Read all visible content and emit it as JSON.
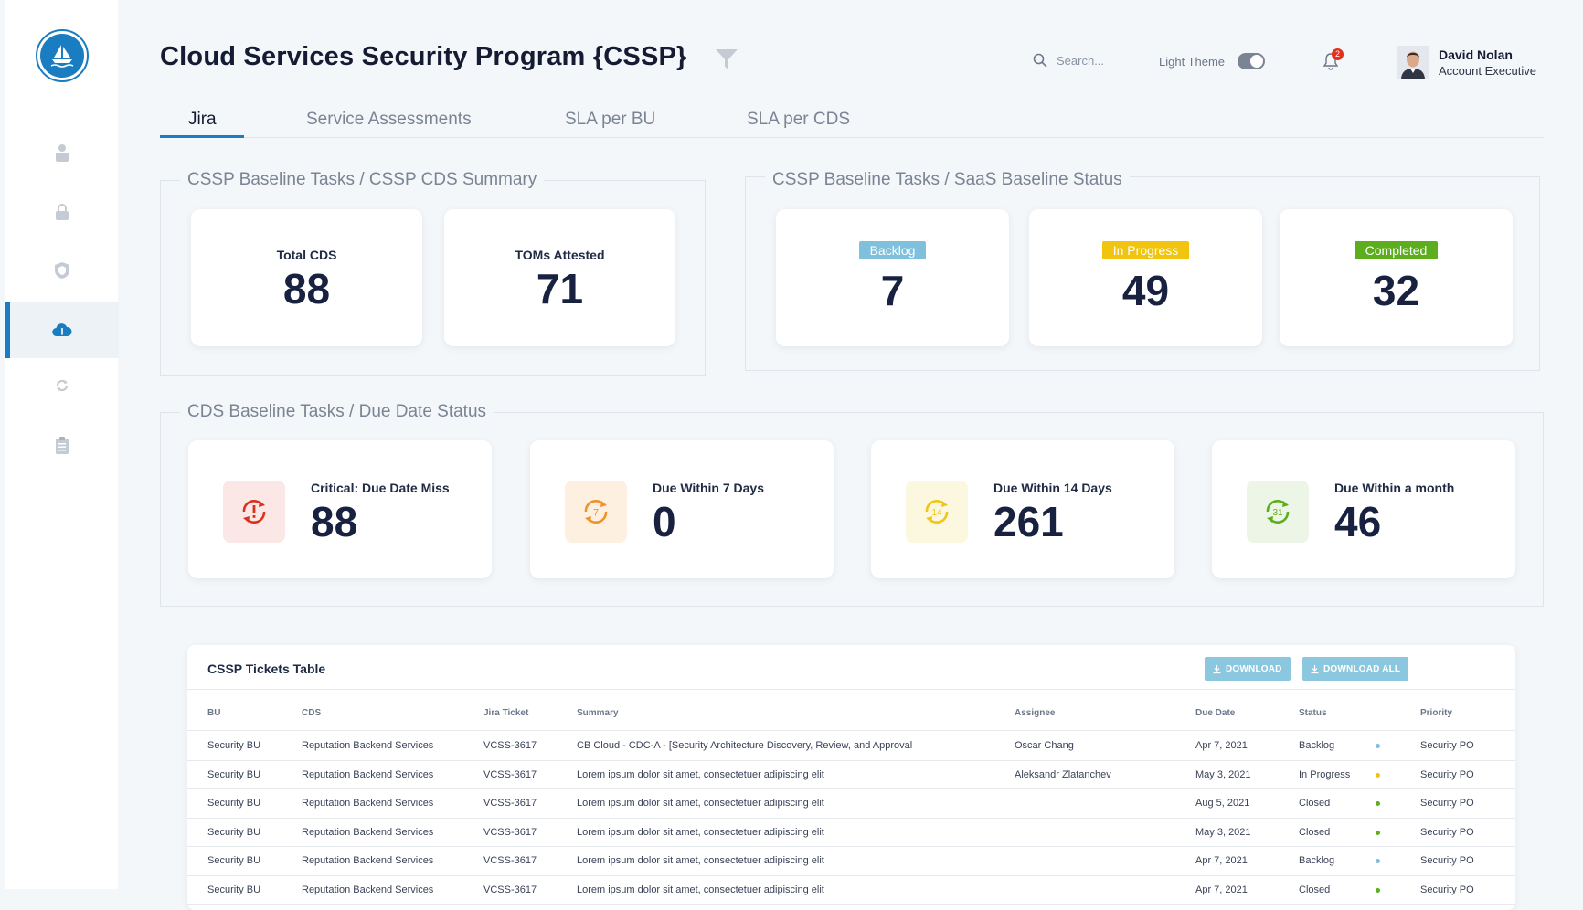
{
  "header": {
    "title": "Cloud Services Security Program {CSSP}",
    "search_placeholder": "Search...",
    "theme_label": "Light Theme",
    "notification_count": "2",
    "user": {
      "name": "David Nolan",
      "role": "Account Executive"
    }
  },
  "sidebar": {
    "items": [
      {
        "icon": "user-icon"
      },
      {
        "icon": "lock-icon"
      },
      {
        "icon": "shield-icon"
      },
      {
        "icon": "cloud-icon",
        "active": true
      },
      {
        "icon": "sync-icon"
      },
      {
        "icon": "clipboard-icon"
      }
    ]
  },
  "tabs": [
    {
      "label": "Jira",
      "active": true
    },
    {
      "label": "Service Assessments"
    },
    {
      "label": "SLA per BU"
    },
    {
      "label": "SLA per CDS"
    }
  ],
  "summary": {
    "legend": "CSSP Baseline Tasks / CSSP CDS Summary",
    "total_cds_label": "Total CDS",
    "total_cds_value": "88",
    "toms_label": "TOMs Attested",
    "toms_value": "71"
  },
  "saas": {
    "legend": "CSSP Baseline Tasks / SaaS Baseline Status",
    "backlog_label": "Backlog",
    "backlog_value": "7",
    "backlog_color": "#7fc1dc",
    "inprogress_label": "In Progress",
    "inprogress_value": "49",
    "inprogress_color": "#f1c40f",
    "completed_label": "Completed",
    "completed_value": "32",
    "completed_color": "#5cae1f"
  },
  "due": {
    "legend": "CDS Baseline Tasks / Due Date Status",
    "critical_label": "Critical: Due Date Miss",
    "critical_value": "88",
    "d7_label": "Due Within 7 Days",
    "d7_value": "0",
    "d14_label": "Due Within 14 Days",
    "d14_value": "261",
    "month_label": "Due Within a month",
    "month_value": "46",
    "d7_icon_text": "7",
    "d14_icon_text": "14",
    "month_icon_text": "31"
  },
  "table": {
    "title": "CSSP Tickets Table",
    "download_label": "DOWNLOAD",
    "download_all_label": "DOWNLOAD ALL",
    "columns": [
      "BU",
      "CDS",
      "Jira Ticket",
      "Summary",
      "Assignee",
      "Due Date",
      "Status",
      "Priority"
    ],
    "rows": [
      {
        "bu": "Security BU",
        "cds": "Reputation Backend Services",
        "ticket": "VCSS-3617",
        "summary": "CB Cloud - CDC-A - [Security Architecture Discovery, Review, and Approval",
        "assignee": "Oscar Chang",
        "due": "Apr 7, 2021",
        "status": "Backlog",
        "priority": "Security PO"
      },
      {
        "bu": "Security BU",
        "cds": "Reputation Backend Services",
        "ticket": "VCSS-3617",
        "summary": "Lorem ipsum dolor sit amet, consectetuer adipiscing elit",
        "assignee": "Aleksandr Zlatanchev",
        "due": "May 3, 2021",
        "status": "In Progress",
        "priority": "Security PO"
      },
      {
        "bu": "Security BU",
        "cds": "Reputation Backend Services",
        "ticket": "VCSS-3617",
        "summary": "Lorem ipsum dolor sit amet, consectetuer adipiscing elit",
        "assignee": "",
        "due": "Aug 5, 2021",
        "status": "Closed",
        "priority": "Security PO"
      },
      {
        "bu": "Security BU",
        "cds": "Reputation Backend Services",
        "ticket": "VCSS-3617",
        "summary": "Lorem ipsum dolor sit amet, consectetuer adipiscing elit",
        "assignee": "",
        "due": "May 3, 2021",
        "status": "Closed",
        "priority": "Security PO"
      },
      {
        "bu": "Security BU",
        "cds": "Reputation Backend Services",
        "ticket": "VCSS-3617",
        "summary": "Lorem ipsum dolor sit amet, consectetuer adipiscing elit",
        "assignee": "",
        "due": "Apr 7, 2021",
        "status": "Backlog",
        "priority": "Security PO"
      },
      {
        "bu": "Security BU",
        "cds": "Reputation Backend Services",
        "ticket": "VCSS-3617",
        "summary": "Lorem ipsum dolor sit amet, consectetuer adipiscing elit",
        "assignee": "",
        "due": "Apr 7, 2021",
        "status": "Closed",
        "priority": "Security PO"
      }
    ],
    "status_colors": {
      "Backlog": "#7fc1dc",
      "In Progress": "#f1c40f",
      "Closed": "#5cae1f"
    }
  }
}
